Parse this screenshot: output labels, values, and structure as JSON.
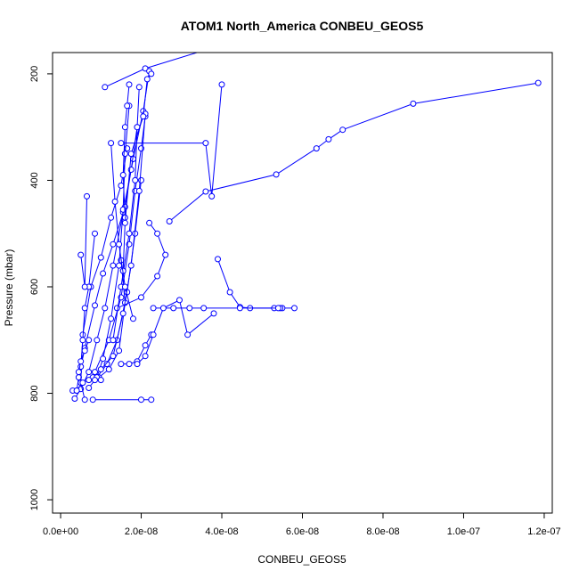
{
  "chart_data": {
    "type": "line",
    "title": "ATOM1 North_America CONBEU_GEOS5",
    "xlabel": "CONBEU_GEOS5",
    "ylabel": "Pressure (mbar)",
    "xlim": [
      -2e-09,
      1.22e-07
    ],
    "ylim": [
      1025,
      160
    ],
    "y_axis_reversed": true,
    "x_ticks": [
      {
        "value": 0,
        "label": "0.0e+00"
      },
      {
        "value": 2e-08,
        "label": "2.0e-08"
      },
      {
        "value": 4e-08,
        "label": "4.0e-08"
      },
      {
        "value": 6e-08,
        "label": "6.0e-08"
      },
      {
        "value": 8e-08,
        "label": "8.0e-08"
      },
      {
        "value": 1e-07,
        "label": "1.0e-07"
      },
      {
        "value": 1.2e-07,
        "label": "1.2e-07"
      }
    ],
    "y_ticks": [
      {
        "value": 200,
        "label": "200"
      },
      {
        "value": 400,
        "label": "400"
      },
      {
        "value": 600,
        "label": "600"
      },
      {
        "value": 800,
        "label": "800"
      },
      {
        "value": 1000,
        "label": "1000"
      }
    ],
    "color": "#0000ff",
    "marker": "open-circle",
    "grid": false,
    "series": [
      {
        "x": [
          1.185e-07,
          8.75e-08,
          7e-08,
          6.65e-08,
          6.35e-08,
          5.35e-08,
          3.6e-08,
          2.7e-08
        ],
        "y": [
          217,
          256,
          305,
          323,
          340,
          389,
          421,
          477
        ]
      },
      {
        "x": [
          4e-08,
          3.75e-08,
          3.6e-08,
          1.5e-08
        ],
        "y": [
          220,
          430,
          330,
          330
        ]
      },
      {
        "x": [
          3.9e-08,
          4.2e-08,
          4.45e-08,
          4.7e-08,
          5.3e-08,
          5.5e-08,
          5.45e-08,
          5.8e-08
        ],
        "y": [
          548,
          610,
          638,
          640,
          640,
          640,
          640,
          640
        ]
      },
      {
        "x": [
          5.4e-08,
          4.45e-08,
          3.55e-08,
          3.2e-08,
          2.8e-08,
          2.3e-08
        ],
        "y": [
          640,
          640,
          640,
          640,
          640,
          640
        ]
      },
      {
        "x": [
          3.6e-08,
          2.1e-08,
          1.1e-08
        ],
        "y": [
          155,
          190,
          225
        ]
      },
      {
        "x": [
          3.5e-09,
          5e-09,
          7e-09,
          9e-09,
          1.1e-08,
          1.3e-08,
          1.55e-08,
          1.8e-08,
          2.05e-08,
          2.2e-08
        ],
        "y": [
          810,
          792,
          760,
          700,
          640,
          560,
          460,
          360,
          270,
          195
        ]
      },
      {
        "x": [
          4e-09,
          4.5e-09,
          6e-09,
          8.5e-09,
          1.05e-08,
          1.3e-08,
          1.6e-08,
          1.75e-08,
          1.9e-08
        ],
        "y": [
          795,
          770,
          715,
          635,
          575,
          520,
          450,
          380,
          300
        ]
      },
      {
        "x": [
          6e-09,
          5e-09,
          5.5e-09,
          7.5e-09,
          1e-08,
          1.25e-08,
          1.5e-08,
          1.65e-08
        ],
        "y": [
          812,
          780,
          690,
          600,
          545,
          470,
          410,
          340
        ]
      },
      {
        "x": [
          7e-09,
          9e-09,
          1.15e-08,
          1.4e-08,
          1.65e-08,
          1.85e-08,
          2e-08
        ],
        "y": [
          790,
          770,
          745,
          700,
          610,
          500,
          400
        ]
      },
      {
        "x": [
          8e-09,
          9.5e-09,
          1.2e-08,
          1.45e-08,
          1.6e-08,
          1.5e-08
        ],
        "y": [
          770,
          770,
          755,
          720,
          630,
          550
        ]
      },
      {
        "x": [
          8.5e-09,
          1.2e-08,
          1.5e-08,
          1.7e-08,
          1.85e-08,
          2e-08,
          2.1e-08
        ],
        "y": [
          760,
          700,
          620,
          520,
          420,
          340,
          280
        ]
      },
      {
        "x": [
          5e-09,
          5.5e-09,
          6e-09,
          7e-09,
          8.5e-09
        ],
        "y": [
          750,
          700,
          640,
          600,
          500
        ]
      },
      {
        "x": [
          5e-09,
          6e-09,
          6.5e-09
        ],
        "y": [
          540,
          600,
          430
        ]
      },
      {
        "x": [
          9e-09,
          1.05e-08,
          1.25e-08,
          1.45e-08,
          1.55e-08,
          1.6e-08,
          1.7e-08
        ],
        "y": [
          770,
          735,
          660,
          560,
          455,
          350,
          260
        ]
      },
      {
        "x": [
          1e-08,
          1.3e-08,
          1.55e-08,
          1.75e-08,
          1.95e-08,
          2.1e-08
        ],
        "y": [
          755,
          730,
          650,
          560,
          420,
          275
        ]
      },
      {
        "x": [
          1.5e-08,
          1.7e-08,
          1.9e-08,
          2.1e-08,
          2.25e-08
        ],
        "y": [
          745,
          745,
          740,
          710,
          690
        ]
      },
      {
        "x": [
          8e-09,
          2e-08,
          2.25e-08
        ],
        "y": [
          812,
          812,
          812
        ]
      },
      {
        "x": [
          1.4e-08,
          2e-08,
          2.4e-08,
          2.6e-08,
          2.4e-08,
          2.2e-08
        ],
        "y": [
          640,
          620,
          580,
          540,
          500,
          480
        ]
      },
      {
        "x": [
          1.9e-08,
          2.1e-08,
          2.3e-08,
          2.55e-08,
          2.95e-08,
          3.15e-08,
          3.8e-08
        ],
        "y": [
          745,
          730,
          690,
          640,
          625,
          690,
          650
        ]
      },
      {
        "x": [
          1.3e-08,
          1.5e-08,
          1.7e-08,
          1.85e-08,
          1.9e-08,
          1.95e-08
        ],
        "y": [
          700,
          600,
          500,
          400,
          300,
          225
        ]
      },
      {
        "x": [
          1.6e-08,
          1.55e-08,
          1.6e-08,
          1.65e-08,
          1.7e-08
        ],
        "y": [
          470,
          390,
          300,
          260,
          220
        ]
      },
      {
        "x": [
          7e-09,
          6e-09,
          5e-09,
          4.5e-09
        ],
        "y": [
          700,
          720,
          740,
          760
        ]
      },
      {
        "x": [
          3e-09,
          4e-09,
          5.5e-09,
          7e-09,
          8.5e-09,
          1e-08
        ],
        "y": [
          795,
          795,
          780,
          775,
          775,
          775
        ]
      },
      {
        "x": [
          1.55e-08,
          1.6e-08,
          1.75e-08,
          2.05e-08,
          2.15e-08,
          2.25e-08
        ],
        "y": [
          570,
          480,
          350,
          280,
          210,
          200
        ]
      },
      {
        "x": [
          1.8e-08,
          1.6e-08,
          1.45e-08,
          1.35e-08,
          1.25e-08
        ],
        "y": [
          660,
          600,
          520,
          440,
          330
        ]
      }
    ]
  }
}
